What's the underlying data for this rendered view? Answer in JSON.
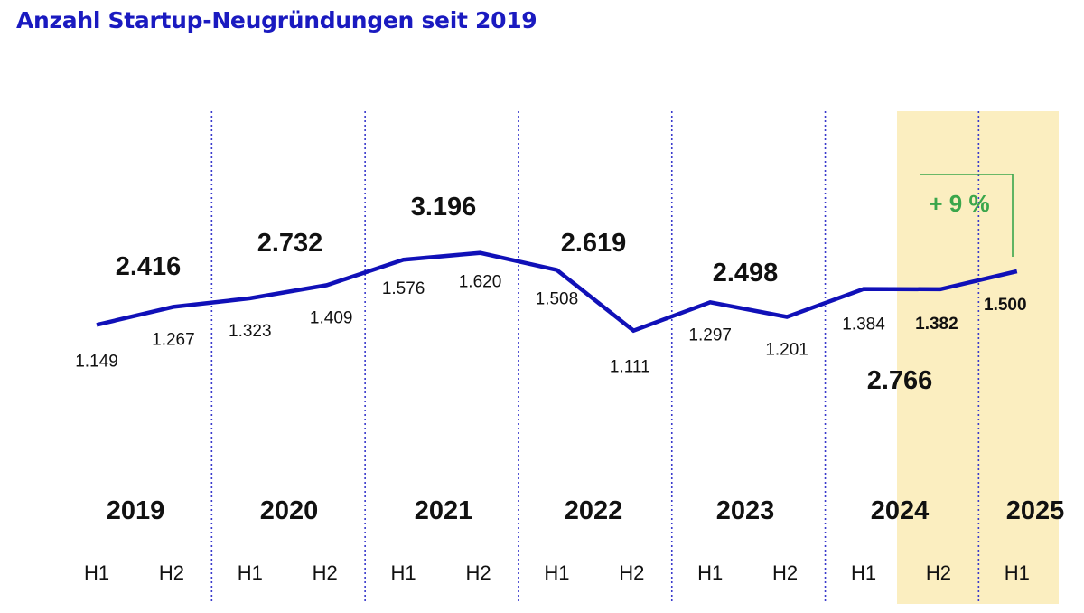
{
  "title": "Anzahl Startup-Neugründungen seit 2019",
  "colors": {
    "line": "#1010b8",
    "divider": "#3a3acc",
    "highlight": "#fbeec0",
    "growth": "#3aa64b",
    "text": "#111111"
  },
  "chart_data": {
    "type": "line",
    "title": "Anzahl Startup-Neugründungen seit 2019",
    "categories": [
      "2019 H1",
      "2019 H2",
      "2020 H1",
      "2020 H2",
      "2021 H1",
      "2021 H2",
      "2022 H1",
      "2022 H2",
      "2023 H1",
      "2023 H2",
      "2024 H1",
      "2024 H2",
      "2025 H1"
    ],
    "half_labels": [
      "H1",
      "H2",
      "H1",
      "H2",
      "H1",
      "H2",
      "H1",
      "H2",
      "H1",
      "H2",
      "H1",
      "H2",
      "H1"
    ],
    "value_labels": [
      "1.149",
      "1.267",
      "1.323",
      "1.409",
      "1.576",
      "1.620",
      "1.508",
      "1.111",
      "1.297",
      "1.201",
      "1.384",
      "1.382",
      "1.500"
    ],
    "series": [
      {
        "values": [
          1149,
          1267,
          1323,
          1409,
          1576,
          1620,
          1508,
          1111,
          1297,
          1201,
          1384,
          1382,
          1500
        ]
      }
    ],
    "years": [
      {
        "label": "2019",
        "total": "2.416"
      },
      {
        "label": "2020",
        "total": "2.732"
      },
      {
        "label": "2021",
        "total": "3.196"
      },
      {
        "label": "2022",
        "total": "2.619"
      },
      {
        "label": "2023",
        "total": "2.498"
      },
      {
        "label": "2024",
        "total": "2.766"
      },
      {
        "label": "2025",
        "total": ""
      }
    ],
    "highlight": {
      "periods": [
        "2024 H2",
        "2025 H1"
      ],
      "change_label": "+ 9 %"
    },
    "grid": false,
    "legend": "none"
  }
}
